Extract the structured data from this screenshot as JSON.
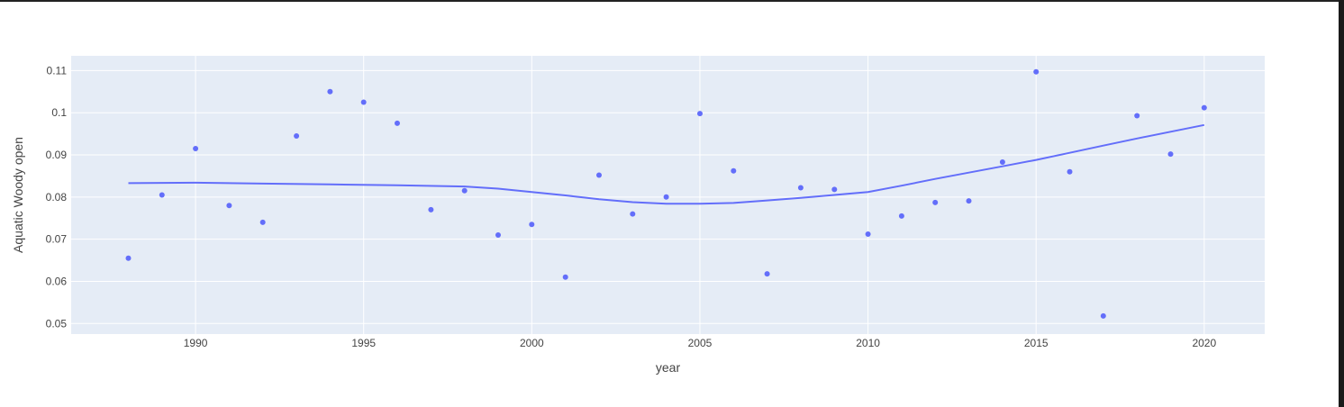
{
  "chart_data": {
    "type": "scatter",
    "xlabel": "year",
    "ylabel": "Aquatic Woody open",
    "xlim": [
      1986.3,
      2021.8
    ],
    "ylim": [
      0.0475,
      0.1135
    ],
    "x_ticks": [
      1990,
      1995,
      2000,
      2005,
      2010,
      2015,
      2020
    ],
    "y_ticks": [
      0.05,
      0.06,
      0.07,
      0.08,
      0.09,
      0.1,
      0.11
    ],
    "y_tick_labels": [
      "0.05",
      "0.06",
      "0.07",
      "0.08",
      "0.09",
      "0.1",
      "0.11"
    ],
    "grid": true,
    "colors": {
      "marker": "#636efa",
      "plot_bg": "#e5ecf6",
      "grid": "#ffffff"
    },
    "series": [
      {
        "mode": "markers",
        "x": [
          1988,
          1989,
          1990,
          1991,
          1992,
          1993,
          1994,
          1995,
          1996,
          1997,
          1998,
          1999,
          2000,
          2001,
          2002,
          2003,
          2004,
          2005,
          2006,
          2007,
          2008,
          2009,
          2010,
          2011,
          2012,
          2013,
          2014,
          2015,
          2016,
          2017,
          2018,
          2019,
          2020
        ],
        "y": [
          0.0655,
          0.0805,
          0.0915,
          0.078,
          0.074,
          0.0945,
          0.105,
          0.1025,
          0.0975,
          0.077,
          0.0815,
          0.071,
          0.0735,
          0.061,
          0.0852,
          0.076,
          0.08,
          0.0998,
          0.0862,
          0.0618,
          0.0822,
          0.0818,
          0.0712,
          0.0755,
          0.0787,
          0.0791,
          0.0883,
          0.1097,
          0.086,
          0.0518,
          0.0993,
          0.0902,
          0.1012
        ]
      },
      {
        "mode": "lines",
        "x": [
          1988,
          1990,
          1992,
          1994,
          1996,
          1998,
          1999,
          2000,
          2001,
          2002,
          2003,
          2004,
          2005,
          2006,
          2007,
          2008,
          2009,
          2010,
          2011,
          2012,
          2013,
          2014,
          2015,
          2016,
          2017,
          2018,
          2019,
          2020
        ],
        "y": [
          0.0833,
          0.0834,
          0.0832,
          0.083,
          0.0828,
          0.0825,
          0.082,
          0.0812,
          0.0804,
          0.0795,
          0.0788,
          0.0784,
          0.0784,
          0.0786,
          0.0792,
          0.0798,
          0.0805,
          0.0812,
          0.0827,
          0.0843,
          0.0858,
          0.0873,
          0.0888,
          0.0905,
          0.0922,
          0.0939,
          0.0955,
          0.0971
        ]
      }
    ]
  }
}
